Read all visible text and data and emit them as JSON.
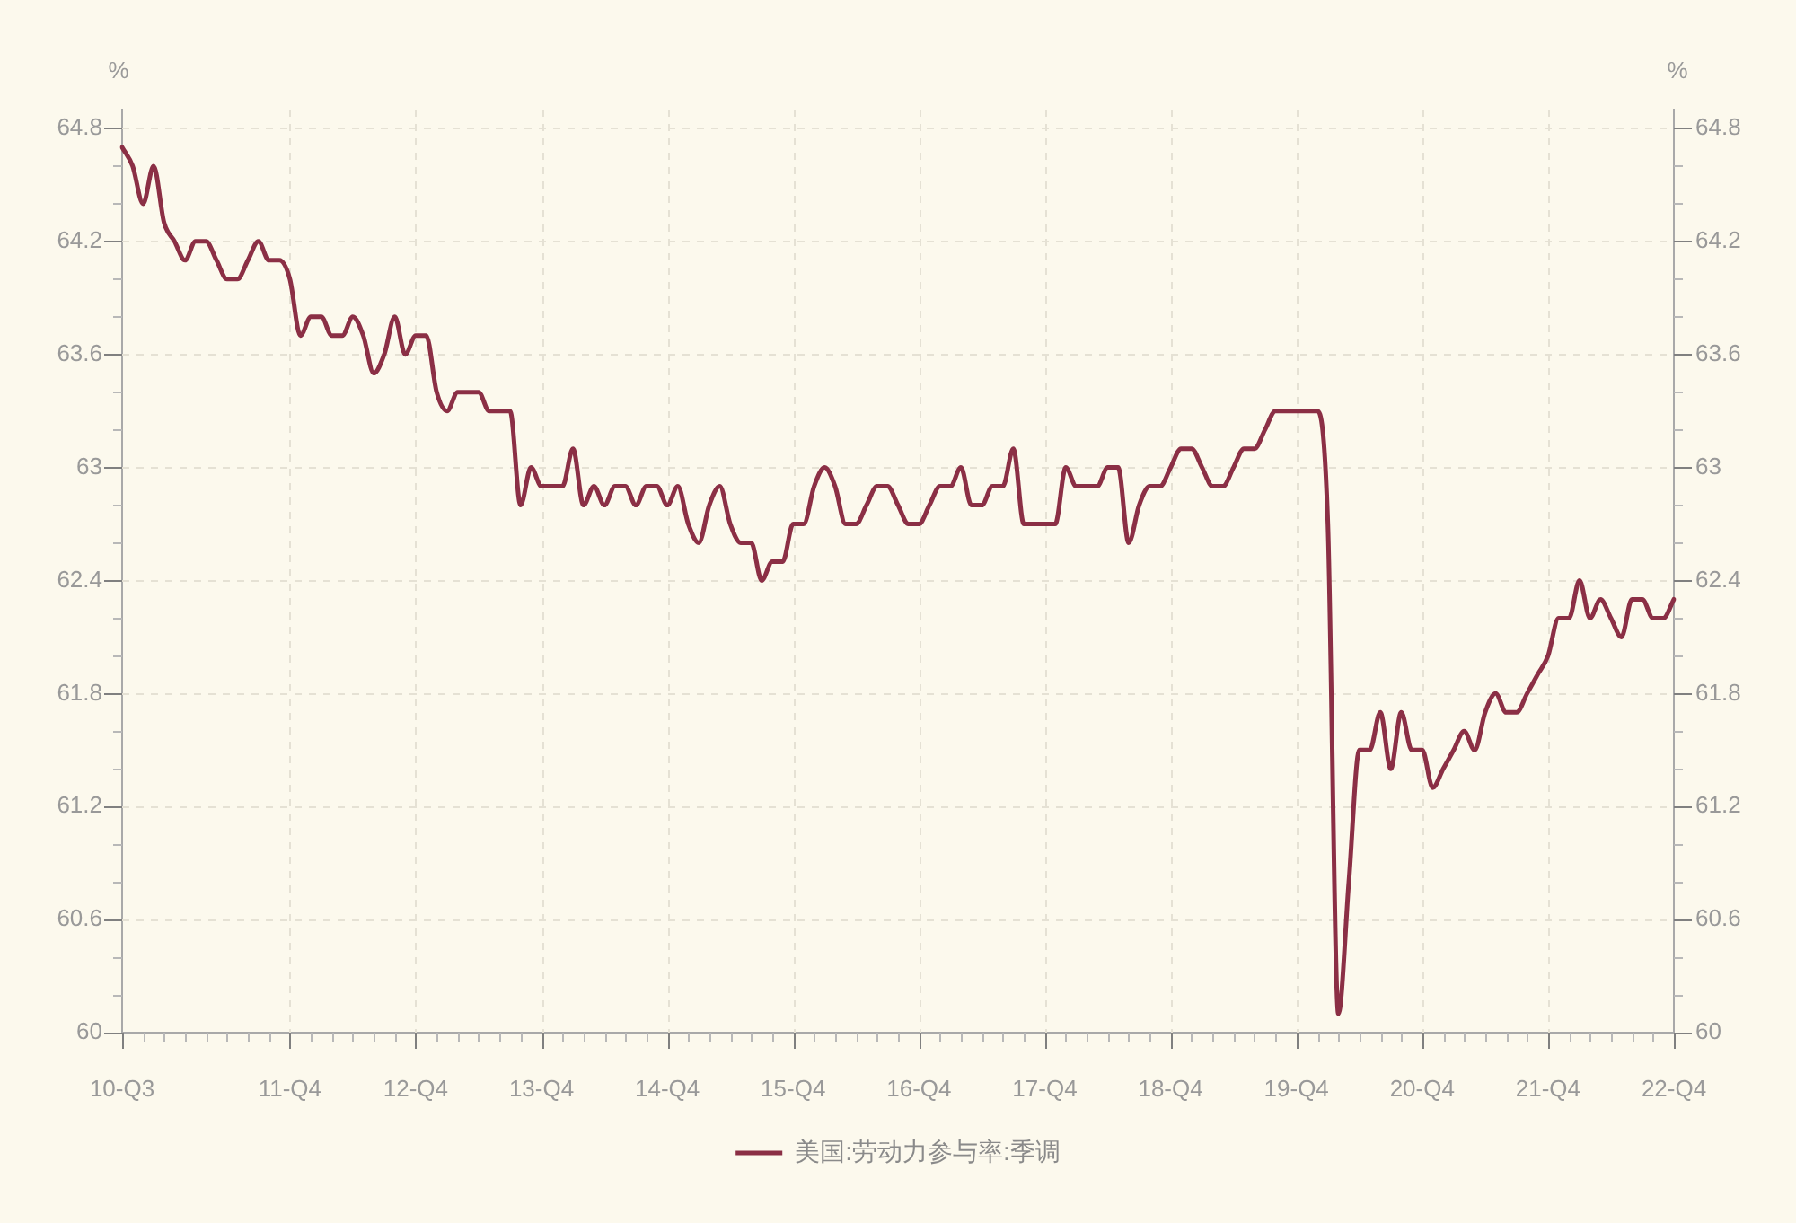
{
  "chart_data": {
    "type": "line",
    "categories": [
      "10-Q3",
      null,
      null,
      null,
      null,
      null,
      null,
      null,
      null,
      null,
      null,
      null,
      null,
      null,
      null,
      null,
      "11-Q4",
      null,
      null,
      null,
      null,
      null,
      null,
      null,
      null,
      null,
      null,
      null,
      "12-Q4",
      null,
      null,
      null,
      null,
      null,
      null,
      null,
      null,
      null,
      null,
      null,
      "13-Q4",
      null,
      null,
      null,
      null,
      null,
      null,
      null,
      null,
      null,
      null,
      null,
      "14-Q4",
      null,
      null,
      null,
      null,
      null,
      null,
      null,
      null,
      null,
      null,
      null,
      "15-Q4",
      null,
      null,
      null,
      null,
      null,
      null,
      null,
      null,
      null,
      null,
      null,
      "16-Q4",
      null,
      null,
      null,
      null,
      null,
      null,
      null,
      null,
      null,
      null,
      null,
      "17-Q4",
      null,
      null,
      null,
      null,
      null,
      null,
      null,
      null,
      null,
      null,
      null,
      "18-Q4",
      null,
      null,
      null,
      null,
      null,
      null,
      null,
      null,
      null,
      null,
      null,
      "19-Q4",
      null,
      null,
      null,
      null,
      null,
      null,
      null,
      null,
      null,
      null,
      null,
      "20-Q4",
      null,
      null,
      null,
      null,
      null,
      null,
      null,
      null,
      null,
      null,
      null,
      "21-Q4",
      null,
      null,
      null,
      null,
      null,
      null,
      null,
      null,
      null,
      null,
      null,
      "22-Q4"
    ],
    "series": [
      {
        "name": "美国:劳动力参与率:季调",
        "color": "#8b2f45",
        "values": [
          64.7,
          64.6,
          64.4,
          64.6,
          64.3,
          64.2,
          64.1,
          64.2,
          64.2,
          64.1,
          64.0,
          64.0,
          64.1,
          64.2,
          64.1,
          64.1,
          64.0,
          63.7,
          63.8,
          63.8,
          63.7,
          63.7,
          63.8,
          63.7,
          63.5,
          63.6,
          63.8,
          63.6,
          63.7,
          63.7,
          63.4,
          63.3,
          63.4,
          63.4,
          63.4,
          63.3,
          63.3,
          63.3,
          62.8,
          63.0,
          62.9,
          62.9,
          62.9,
          63.1,
          62.8,
          62.9,
          62.8,
          62.9,
          62.9,
          62.8,
          62.9,
          62.9,
          62.8,
          62.9,
          62.7,
          62.6,
          62.8,
          62.9,
          62.7,
          62.6,
          62.6,
          62.4,
          62.5,
          62.5,
          62.7,
          62.7,
          62.9,
          63.0,
          62.9,
          62.7,
          62.7,
          62.8,
          62.9,
          62.9,
          62.8,
          62.7,
          62.7,
          62.8,
          62.9,
          62.9,
          63.0,
          62.8,
          62.8,
          62.9,
          62.9,
          63.1,
          62.7,
          62.7,
          62.7,
          62.7,
          63.0,
          62.9,
          62.9,
          62.9,
          63.0,
          63.0,
          62.6,
          62.8,
          62.9,
          62.9,
          63.0,
          63.1,
          63.1,
          63.0,
          62.9,
          62.9,
          63.0,
          63.1,
          63.1,
          63.2,
          63.3,
          63.3,
          63.3,
          63.3,
          63.3,
          62.7,
          60.1,
          60.8,
          61.5,
          61.5,
          61.7,
          61.4,
          61.7,
          61.5,
          61.5,
          61.3,
          61.4,
          61.5,
          61.6,
          61.5,
          61.7,
          61.8,
          61.7,
          61.7,
          61.8,
          61.9,
          62.0,
          62.2,
          62.2,
          62.4,
          62.2,
          62.3,
          62.2,
          62.1,
          62.3,
          62.3,
          62.2,
          62.2,
          62.3
        ]
      }
    ],
    "ylabel": "%",
    "y2label": "%",
    "ylim": [
      60,
      64.9
    ],
    "yticks": [
      60,
      {
        "value": 60.2,
        "label": null
      },
      {
        "value": 60.4,
        "label": null
      },
      60.6,
      {
        "value": 60.8,
        "label": null
      },
      {
        "value": 61,
        "label": null
      },
      61.2,
      {
        "value": 61.4,
        "label": null
      },
      {
        "value": 61.6,
        "label": null
      },
      61.8,
      {
        "value": 62,
        "label": null
      },
      {
        "value": 62.2,
        "label": null
      },
      62.4,
      {
        "value": 62.6,
        "label": null
      },
      {
        "value": 62.8,
        "label": null
      },
      63,
      {
        "value": 63.2,
        "label": null
      },
      {
        "value": 63.4,
        "label": null
      },
      63.6,
      {
        "value": 63.8,
        "label": null
      },
      {
        "value": 64,
        "label": null
      },
      64.2,
      {
        "value": 64.4,
        "label": null
      },
      {
        "value": 64.6,
        "label": null
      },
      64.8
    ],
    "y2lim": [
      60,
      64.9
    ],
    "y2ticks": [
      60,
      {
        "value": 60.2,
        "label": null
      },
      {
        "value": 60.4,
        "label": null
      },
      60.6,
      {
        "value": 60.8,
        "label": null
      },
      {
        "value": 61,
        "label": null
      },
      61.2,
      {
        "value": 61.4,
        "label": null
      },
      {
        "value": 61.6,
        "label": null
      },
      61.8,
      {
        "value": 62,
        "label": null
      },
      {
        "value": 62.2,
        "label": null
      },
      62.4,
      {
        "value": 62.6,
        "label": null
      },
      {
        "value": 62.8,
        "label": null
      },
      63,
      {
        "value": 63.2,
        "label": null
      },
      {
        "value": 63.4,
        "label": null
      },
      63.6,
      {
        "value": 63.8,
        "label": null
      },
      {
        "value": 64,
        "label": null
      },
      64.2,
      {
        "value": 64.4,
        "label": null
      },
      {
        "value": 64.6,
        "label": null
      },
      64.8
    ],
    "grid": true,
    "legend": "bottom",
    "marker": "none",
    "line_style": "solid"
  }
}
